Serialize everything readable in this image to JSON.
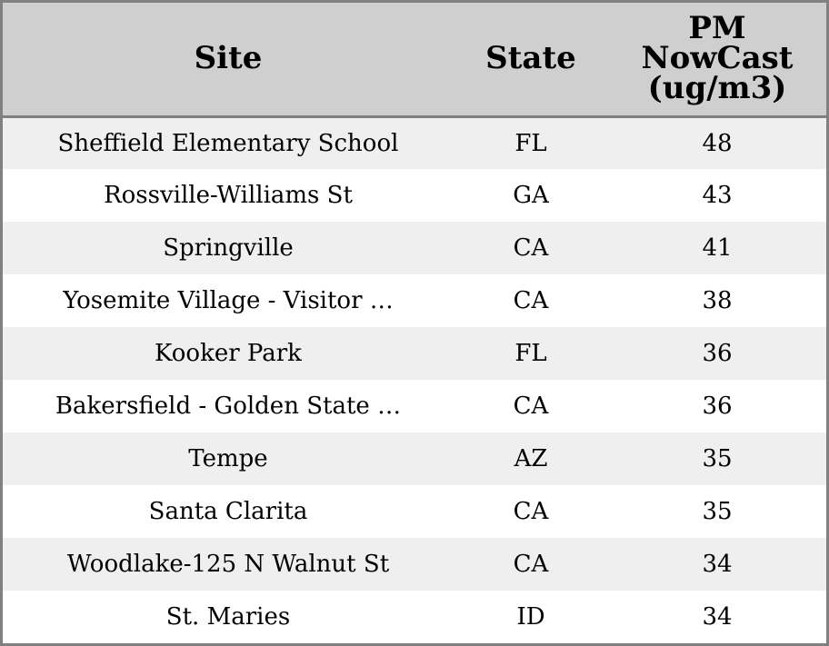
{
  "chart_data": {
    "type": "table",
    "columns": [
      "Site",
      "State",
      "PM\nNowCast\n(ug/m3)"
    ],
    "header_lines": {
      "site": "Site",
      "state": "State",
      "pm_line1": "PM",
      "pm_line2": "NowCast",
      "pm_line3": "(ug/m3)"
    },
    "rows": [
      {
        "site": "Sheffield Elementary School",
        "state": "FL",
        "pm": "48"
      },
      {
        "site": "Rossville-Williams St",
        "state": "GA",
        "pm": "43"
      },
      {
        "site": "Springville",
        "state": "CA",
        "pm": "41"
      },
      {
        "site": "Yosemite Village - Visitor …",
        "state": "CA",
        "pm": "38"
      },
      {
        "site": "Kooker Park",
        "state": "FL",
        "pm": "36"
      },
      {
        "site": "Bakersfield - Golden State …",
        "state": "CA",
        "pm": "36"
      },
      {
        "site": "Tempe",
        "state": "AZ",
        "pm": "35"
      },
      {
        "site": "Santa Clarita",
        "state": "CA",
        "pm": "35"
      },
      {
        "site": "Woodlake-125 N Walnut St",
        "state": "CA",
        "pm": "34"
      },
      {
        "site": "St. Maries",
        "state": "ID",
        "pm": "34"
      }
    ]
  },
  "colors": {
    "header_background": "#cfcfcf",
    "stripe_background": "#efefef",
    "border": "#808080"
  }
}
